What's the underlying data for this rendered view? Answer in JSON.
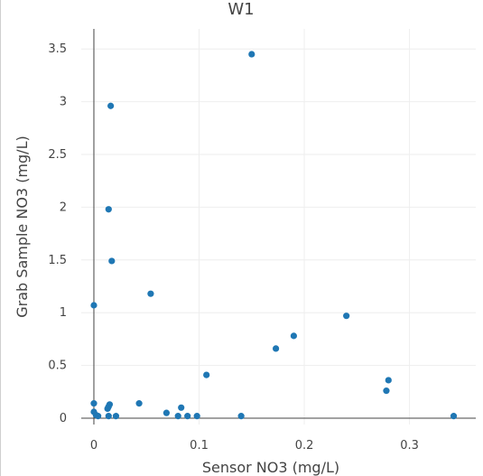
{
  "chart_data": {
    "type": "scatter",
    "title": "W1",
    "xlabel": "Sensor NO3 (mg/L)",
    "ylabel": "Grab Sample NO3 (mg/L)",
    "xlim": [
      -0.012,
      0.363
    ],
    "ylim": [
      -0.06,
      3.69
    ],
    "x_ticks": [
      0,
      0.1,
      0.2,
      0.3
    ],
    "x_tick_labels": [
      "0",
      "0.1",
      "0.2",
      "0.3"
    ],
    "y_ticks": [
      0,
      0.5,
      1,
      1.5,
      2,
      2.5,
      3,
      3.5
    ],
    "y_tick_labels": [
      "0",
      "0.5",
      "1",
      "1.5",
      "2",
      "2.5",
      "3",
      "3.5"
    ],
    "grid": true,
    "marker_color": "#1f77b4",
    "series": [
      {
        "points": [
          {
            "x": 0.15,
            "y": 3.45
          },
          {
            "x": 0.016,
            "y": 2.96
          },
          {
            "x": 0.014,
            "y": 1.98
          },
          {
            "x": 0.017,
            "y": 1.49
          },
          {
            "x": 0.054,
            "y": 1.18
          },
          {
            "x": 0.0,
            "y": 1.07
          },
          {
            "x": 0.24,
            "y": 0.97
          },
          {
            "x": 0.19,
            "y": 0.78
          },
          {
            "x": 0.173,
            "y": 0.66
          },
          {
            "x": 0.107,
            "y": 0.41
          },
          {
            "x": 0.28,
            "y": 0.36
          },
          {
            "x": 0.278,
            "y": 0.26
          },
          {
            "x": 0.0,
            "y": 0.14
          },
          {
            "x": 0.043,
            "y": 0.14
          },
          {
            "x": 0.015,
            "y": 0.13
          },
          {
            "x": 0.014,
            "y": 0.11
          },
          {
            "x": 0.013,
            "y": 0.09
          },
          {
            "x": 0.083,
            "y": 0.1
          },
          {
            "x": 0.0,
            "y": 0.06
          },
          {
            "x": 0.069,
            "y": 0.05
          },
          {
            "x": 0.002,
            "y": 0.03
          },
          {
            "x": 0.004,
            "y": 0.02
          },
          {
            "x": 0.014,
            "y": 0.02
          },
          {
            "x": 0.021,
            "y": 0.02
          },
          {
            "x": 0.08,
            "y": 0.02
          },
          {
            "x": 0.089,
            "y": 0.02
          },
          {
            "x": 0.098,
            "y": 0.02
          },
          {
            "x": 0.14,
            "y": 0.02
          },
          {
            "x": 0.342,
            "y": 0.02
          }
        ]
      }
    ]
  }
}
